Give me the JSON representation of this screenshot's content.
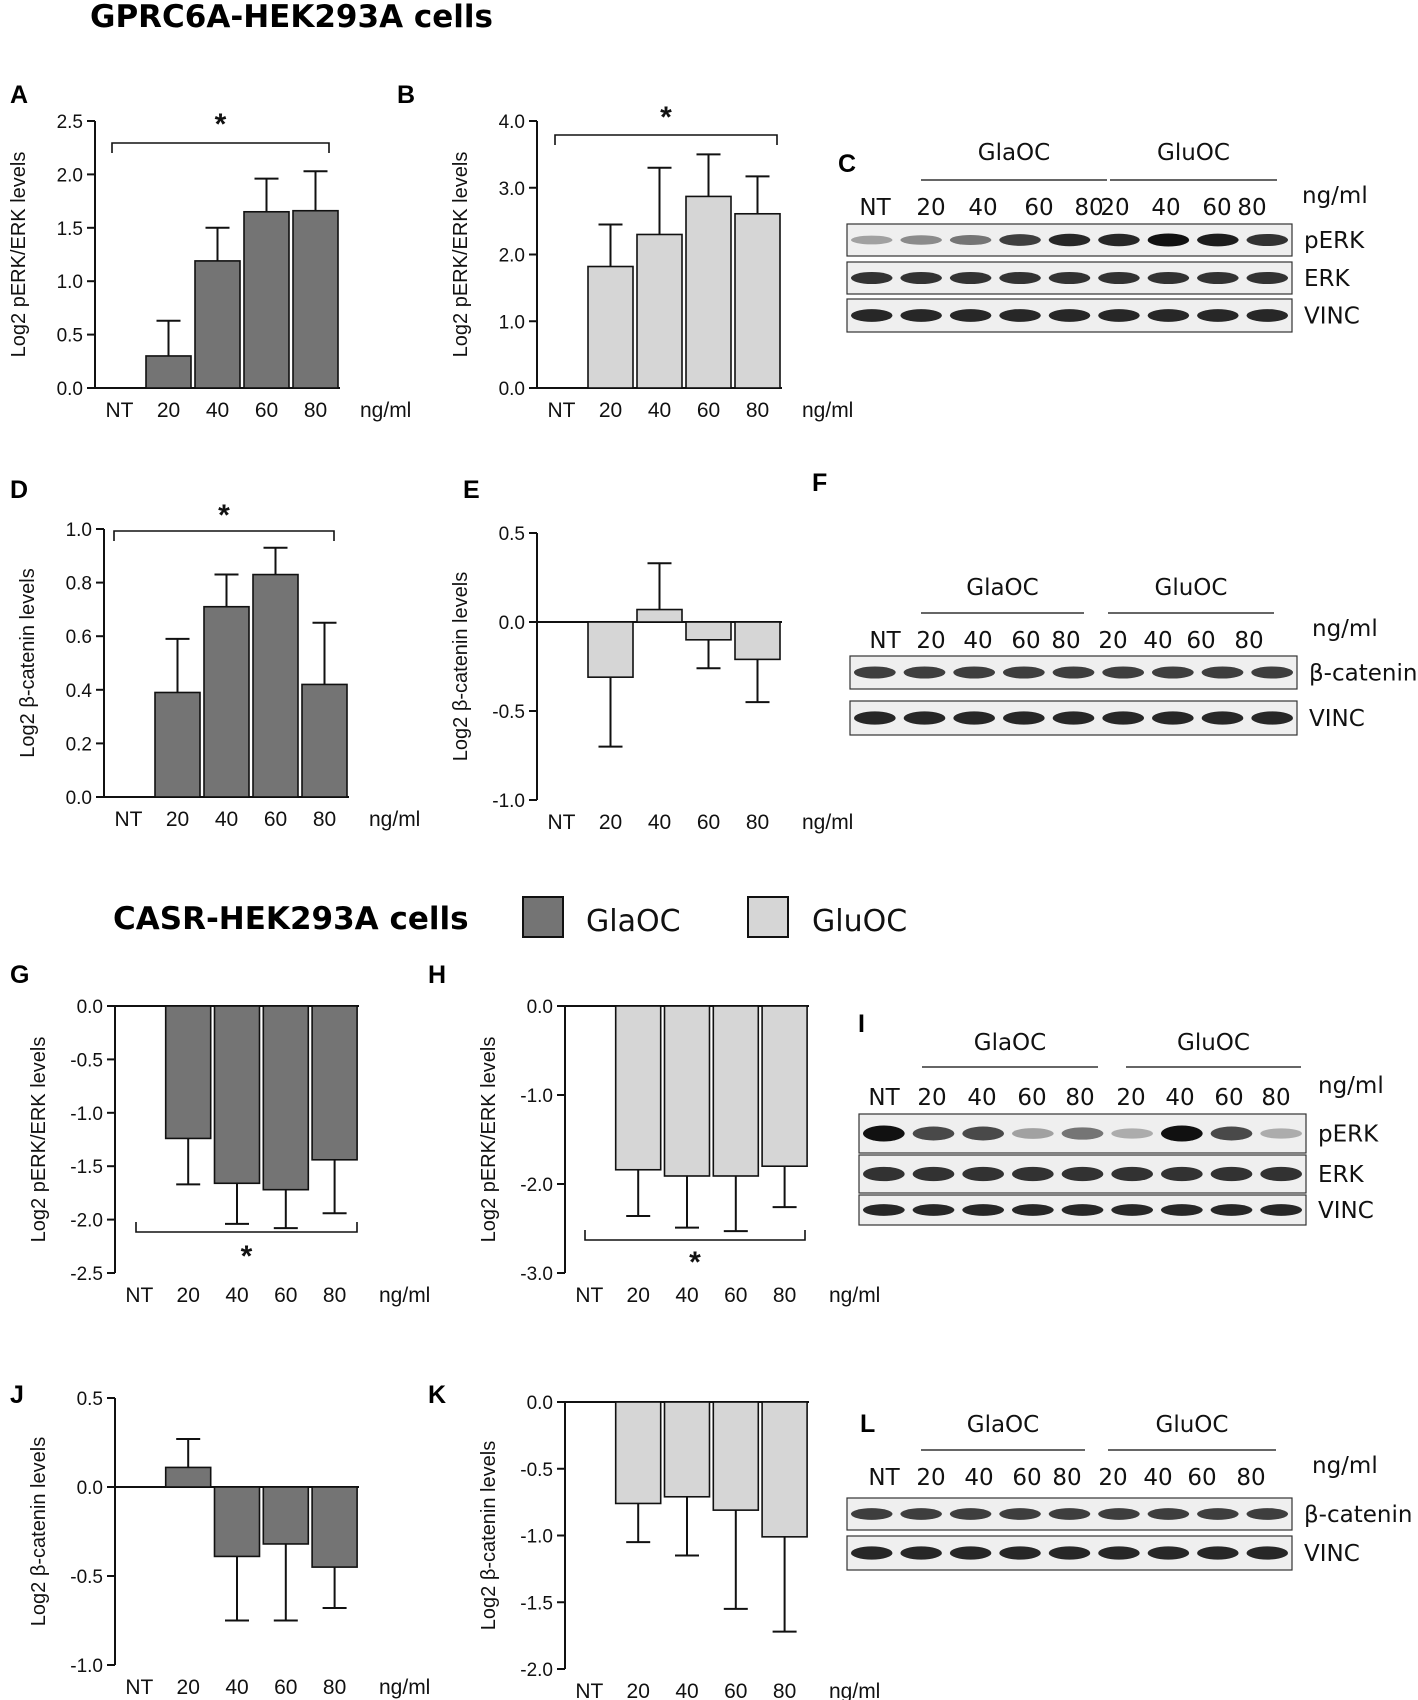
{
  "titles": {
    "gprc6a": "GPRC6A-HEK293A cells",
    "casr": "CASR-HEK293A cells"
  },
  "legend": {
    "glaoc": "GlaOC",
    "gluoc": "GluOC",
    "glaoc_color": "#747474",
    "gluoc_color": "#d6d6d6"
  },
  "chart_data": [
    {
      "panel": "A",
      "type": "bar",
      "series": "GlaOC",
      "categories": [
        "NT",
        "20",
        "40",
        "60",
        "80"
      ],
      "values": [
        0,
        0.3,
        1.19,
        1.65,
        1.66
      ],
      "errors": [
        0,
        0.33,
        0.31,
        0.31,
        0.37
      ],
      "ylim": [
        0,
        2.5
      ],
      "yticks": [
        "0.0",
        "0.5",
        "1.0",
        "1.5",
        "2.0",
        "2.5"
      ],
      "ylabel": "Log2 pERK/ERK levels",
      "xunit": "ng/ml",
      "significance": "*"
    },
    {
      "panel": "B",
      "type": "bar",
      "series": "GluOC",
      "categories": [
        "NT",
        "20",
        "40",
        "60",
        "80"
      ],
      "values": [
        0,
        1.82,
        2.3,
        2.87,
        2.61
      ],
      "errors": [
        0,
        0.63,
        1.0,
        0.63,
        0.56
      ],
      "ylim": [
        0,
        4.0
      ],
      "yticks": [
        "0.0",
        "1.0",
        "2.0",
        "3.0",
        "4.0"
      ],
      "ylabel": "Log2 pERK/ERK levels",
      "xunit": "ng/ml",
      "significance": "*"
    },
    {
      "panel": "D",
      "type": "bar",
      "series": "GlaOC",
      "categories": [
        "NT",
        "20",
        "40",
        "60",
        "80"
      ],
      "values": [
        0,
        0.39,
        0.71,
        0.83,
        0.42
      ],
      "errors": [
        0,
        0.2,
        0.12,
        0.1,
        0.23
      ],
      "ylim": [
        0,
        1.0
      ],
      "yticks": [
        "0.0",
        "0.2",
        "0.4",
        "0.6",
        "0.8",
        "1.0"
      ],
      "ylabel": "Log2 β-catenin levels",
      "xunit": "ng/ml",
      "significance": "*"
    },
    {
      "panel": "E",
      "type": "bar",
      "series": "GluOC",
      "categories": [
        "NT",
        "20",
        "40",
        "60",
        "80"
      ],
      "values": [
        0,
        -0.31,
        0.07,
        -0.1,
        -0.21
      ],
      "errors": [
        0,
        0.39,
        0.26,
        0.16,
        0.24
      ],
      "ylim": [
        -1.0,
        0.5
      ],
      "yticks": [
        "-1.0",
        "-0.5",
        "0.0",
        "0.5"
      ],
      "ylabel": "Log2 β-catenin levels",
      "xunit": "ng/ml",
      "significance": ""
    },
    {
      "panel": "G",
      "type": "bar",
      "series": "GlaOC",
      "categories": [
        "NT",
        "20",
        "40",
        "60",
        "80"
      ],
      "values": [
        0,
        -1.24,
        -1.66,
        -1.72,
        -1.44
      ],
      "errors": [
        0,
        0.43,
        0.38,
        0.36,
        0.5
      ],
      "ylim": [
        -2.5,
        0
      ],
      "yticks": [
        "-2.5",
        "-2.0",
        "-1.5",
        "-1.0",
        "-0.5",
        "0.0"
      ],
      "ylabel": "Log2 pERK/ERK levels",
      "xunit": "ng/ml",
      "significance": "*"
    },
    {
      "panel": "H",
      "type": "bar",
      "series": "GluOC",
      "categories": [
        "NT",
        "20",
        "40",
        "60",
        "80"
      ],
      "values": [
        0,
        -1.84,
        -1.91,
        -1.91,
        -1.8
      ],
      "errors": [
        0,
        0.52,
        0.58,
        0.62,
        0.46
      ],
      "ylim": [
        -3.0,
        0
      ],
      "yticks": [
        "-3.0",
        "-2.0",
        "-1.0",
        "0.0"
      ],
      "ylabel": "Log2 pERK/ERK levels",
      "xunit": "ng/ml",
      "significance": "*"
    },
    {
      "panel": "J",
      "type": "bar",
      "series": "GlaOC",
      "categories": [
        "NT",
        "20",
        "40",
        "60",
        "80"
      ],
      "values": [
        0,
        0.11,
        -0.39,
        -0.32,
        -0.45
      ],
      "errors": [
        0,
        0.16,
        0.36,
        0.43,
        0.23
      ],
      "ylim": [
        -1.0,
        0.5
      ],
      "yticks": [
        "-1.0",
        "-0.5",
        "0.0",
        "0.5"
      ],
      "ylabel": "Log2 β-catenin levels",
      "xunit": "ng/ml",
      "significance": ""
    },
    {
      "panel": "K",
      "type": "bar",
      "series": "GluOC",
      "categories": [
        "NT",
        "20",
        "40",
        "60",
        "80"
      ],
      "values": [
        0,
        -0.76,
        -0.71,
        -0.81,
        -1.01
      ],
      "errors": [
        0,
        0.29,
        0.44,
        0.74,
        0.71
      ],
      "ylim": [
        -2.0,
        0
      ],
      "yticks": [
        "-2.0",
        "-1.5",
        "-1.0",
        "-0.5",
        "0.0"
      ],
      "ylabel": "Log2 β-catenin levels",
      "xunit": "ng/ml",
      "significance": ""
    }
  ],
  "blots": [
    {
      "panel": "C",
      "group1": "GlaOC",
      "group2": "GluOC",
      "lanes": [
        "NT",
        "20",
        "40",
        "60",
        "80",
        "20",
        "40",
        "60",
        "80"
      ],
      "unit": "ng/ml",
      "rows": [
        "pERK",
        "ERK",
        "VINC"
      ]
    },
    {
      "panel": "F",
      "group1": "GlaOC",
      "group2": "GluOC",
      "lanes": [
        "NT",
        "20",
        "40",
        "60",
        "80",
        "20",
        "40",
        "60",
        "80"
      ],
      "unit": "ng/ml",
      "rows": [
        "β-catenin",
        "VINC"
      ]
    },
    {
      "panel": "I",
      "group1": "GlaOC",
      "group2": "GluOC",
      "lanes": [
        "NT",
        "20",
        "40",
        "60",
        "80",
        "20",
        "40",
        "60",
        "80"
      ],
      "unit": "ng/ml",
      "rows": [
        "pERK",
        "ERK",
        "VINC"
      ]
    },
    {
      "panel": "L",
      "group1": "GlaOC",
      "group2": "GluOC",
      "lanes": [
        "NT",
        "20",
        "40",
        "60",
        "80",
        "20",
        "40",
        "60",
        "80"
      ],
      "unit": "ng/ml",
      "rows": [
        "β-catenin",
        "VINC"
      ]
    }
  ]
}
